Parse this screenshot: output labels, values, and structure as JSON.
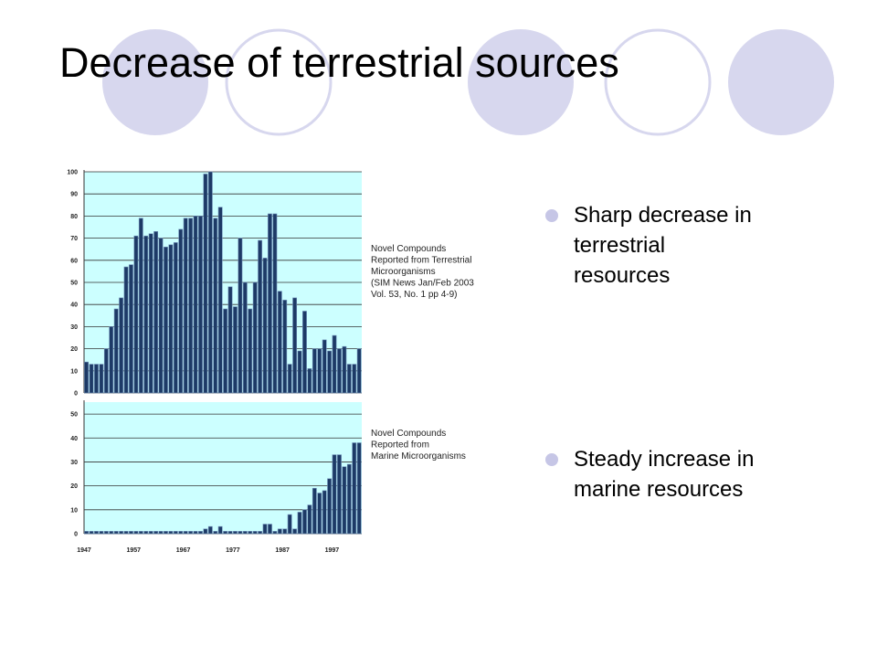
{
  "title": "Decrease of terrestrial sources",
  "bullets": [
    [
      "Sharp decrease in",
      "terrestrial",
      "resources"
    ],
    [
      "Steady increase in",
      "marine resources"
    ]
  ],
  "chart_data": [
    {
      "type": "bar",
      "annotation": [
        "Novel Compounds",
        "Reported from Terrestrial",
        "Microorganisms",
        "(SIM News Jan/Feb 2003",
        "Vol. 53, No. 1 pp 4-9)"
      ],
      "values": [
        14,
        13,
        13,
        13,
        20,
        30,
        38,
        43,
        57,
        58,
        71,
        79,
        71,
        72,
        73,
        70,
        66,
        67,
        68,
        74,
        79,
        79,
        80,
        80,
        99,
        100,
        79,
        84,
        38,
        48,
        39,
        70,
        50,
        38,
        50,
        69,
        61,
        81,
        81,
        46,
        42,
        13,
        43,
        19,
        37,
        11,
        20,
        20,
        24,
        19,
        26,
        20,
        21,
        13,
        13,
        20
      ],
      "color": "#1d3a66",
      "ylim": [
        0,
        100
      ],
      "yticks": [
        0,
        10,
        20,
        30,
        40,
        50,
        60,
        70,
        80,
        90,
        100
      ],
      "grid": true
    },
    {
      "type": "bar",
      "annotation": [
        "Novel Compounds",
        "Reported from",
        "Marine Microorganisms"
      ],
      "categories": [
        "1947",
        null,
        null,
        null,
        null,
        null,
        null,
        null,
        null,
        null,
        "1957",
        null,
        null,
        null,
        null,
        null,
        null,
        null,
        null,
        null,
        "1967",
        null,
        null,
        null,
        null,
        null,
        null,
        null,
        null,
        null,
        "1977",
        null,
        null,
        null,
        null,
        null,
        null,
        null,
        null,
        null,
        "1987",
        null,
        null,
        null,
        null,
        null,
        null,
        null,
        null,
        null,
        "1997",
        null,
        null,
        null,
        null,
        null
      ],
      "values": [
        1,
        1,
        1,
        1,
        1,
        1,
        1,
        1,
        1,
        1,
        1,
        1,
        1,
        1,
        1,
        1,
        1,
        1,
        1,
        1,
        1,
        1,
        1,
        1,
        2,
        3,
        1,
        3,
        1,
        1,
        1,
        1,
        1,
        1,
        1,
        1,
        4,
        4,
        1,
        2,
        2,
        8,
        2,
        9,
        10,
        12,
        19,
        17,
        18,
        23,
        33,
        33,
        28,
        29,
        38,
        38
      ],
      "color": "#1d3a66",
      "ylim": [
        0,
        55
      ],
      "yticks": [
        0,
        10,
        20,
        30,
        40,
        50
      ],
      "grid": true
    }
  ]
}
